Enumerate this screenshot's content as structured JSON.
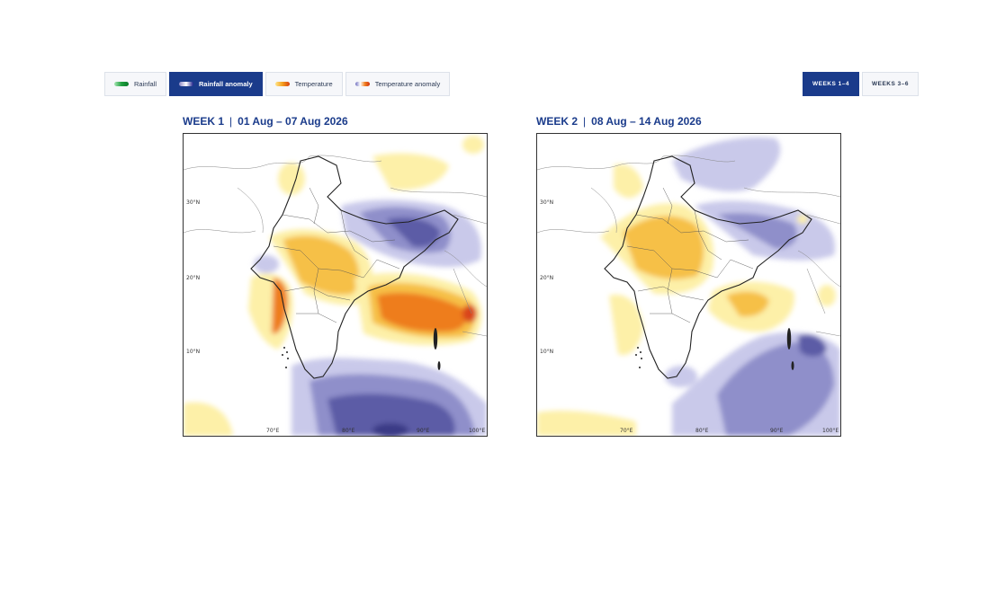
{
  "layer_tabs": [
    {
      "label": "Rainfall",
      "swatch": "linear-gradient(90deg,#a8e6b4,#20a040,#0a7a2a)",
      "active": false
    },
    {
      "label": "Rainfall anomaly",
      "swatch": "linear-gradient(90deg,#8a86c4,#ffffff,#1d1d8a)",
      "active": true
    },
    {
      "label": "Temperature",
      "swatch": "linear-gradient(90deg,#ffe58a,#f4a020,#d84010)",
      "active": false
    },
    {
      "label": "Temperature anomaly",
      "swatch": "linear-gradient(90deg,#7070c0,#ffffff,#f08020,#d03010)",
      "active": false
    }
  ],
  "week_tabs": [
    {
      "label": "WEEKS 1–4",
      "active": true
    },
    {
      "label": "WEEKS 3–6",
      "active": false
    }
  ],
  "panels": [
    {
      "week": "WEEK 1",
      "separator": "|",
      "range": "01 Aug – 07 Aug 2026"
    },
    {
      "week": "WEEK 2",
      "separator": "|",
      "range": "08 Aug – 14 Aug 2026"
    }
  ],
  "axis_labels": {
    "lat": [
      "30°N",
      "20°N",
      "10°N"
    ],
    "lon": [
      "70°E",
      "80°E",
      "90°E",
      "100°E"
    ]
  },
  "colors": {
    "accent": "#1a3b8b",
    "wet_light": "#c9c9ea",
    "wet_mid": "#8f8fca",
    "wet_dark": "#5c5ca6",
    "dry_light": "#fdf0a8",
    "dry_mid": "#f6c046",
    "dry_dark": "#ee7d1d",
    "dry_deep": "#d9441a"
  }
}
